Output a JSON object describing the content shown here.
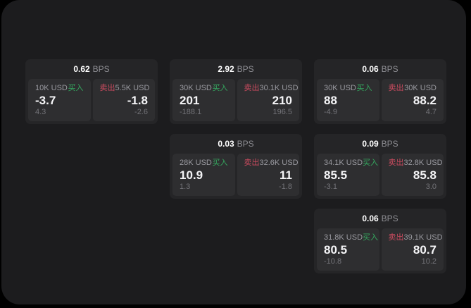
{
  "labels": {
    "buy": "买入",
    "sell": "卖出",
    "bps": "BPS"
  },
  "colors": {
    "background": "#000000",
    "panel": "#1c1c1e",
    "card": "#252527",
    "tile": "#2e2e30",
    "buy_green": "#35a85f",
    "sell_red": "#cb4b5f",
    "amount_gray": "#9a9aa0",
    "delta_gray": "#737378",
    "price_white": "#f5f5f7"
  },
  "cards": [
    {
      "row": 1,
      "col": 1,
      "spread": "0.62",
      "buy": {
        "amount": "10K USD",
        "price": "-3.7",
        "delta": "4.3"
      },
      "sell": {
        "amount": "5.5K USD",
        "price": "-1.8",
        "delta": "-2.6"
      }
    },
    {
      "row": 1,
      "col": 2,
      "spread": "2.92",
      "buy": {
        "amount": "30K USD",
        "price": "201",
        "delta": "-188.1"
      },
      "sell": {
        "amount": "30.1K USD",
        "price": "210",
        "delta": "196.5"
      }
    },
    {
      "row": 1,
      "col": 3,
      "spread": "0.06",
      "buy": {
        "amount": "30K USD",
        "price": "88",
        "delta": "-4.9"
      },
      "sell": {
        "amount": "30K USD",
        "price": "88.2",
        "delta": "4.7"
      }
    },
    {
      "row": 2,
      "col": 2,
      "spread": "0.03",
      "buy": {
        "amount": "28K USD",
        "price": "10.9",
        "delta": "1.3"
      },
      "sell": {
        "amount": "32.6K USD",
        "price": "11",
        "delta": "-1.8"
      }
    },
    {
      "row": 2,
      "col": 3,
      "spread": "0.09",
      "buy": {
        "amount": "34.1K USD",
        "price": "85.5",
        "delta": "-3.1"
      },
      "sell": {
        "amount": "32.8K USD",
        "price": "85.8",
        "delta": "3.0"
      }
    },
    {
      "row": 3,
      "col": 3,
      "spread": "0.06",
      "buy": {
        "amount": "31.8K USD",
        "price": "80.5",
        "delta": "-10.8"
      },
      "sell": {
        "amount": "39.1K USD",
        "price": "80.7",
        "delta": "10.2"
      }
    }
  ]
}
